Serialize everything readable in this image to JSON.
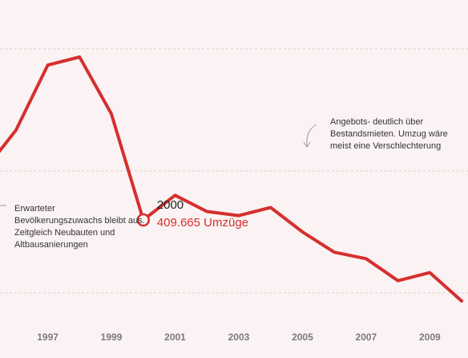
{
  "chart_data": {
    "type": "line",
    "x": [
      1995,
      1996,
      1997,
      1998,
      1999,
      2000,
      2001,
      2002,
      2003,
      2004,
      2005,
      2006,
      2007,
      2008,
      2009,
      2010
    ],
    "series": [
      {
        "values": [
          470000,
          520000,
          600000,
          610000,
          540000,
          409665,
          440000,
          420000,
          415000,
          425000,
          395000,
          370000,
          362000,
          335000,
          345000,
          310000
        ]
      }
    ],
    "x_ticks": [
      "1997",
      "1999",
      "2001",
      "2003",
      "2005",
      "2007",
      "2009"
    ],
    "xlim": [
      1995.5,
      2010.2
    ],
    "ylim": [
      240000,
      680000
    ],
    "grid_y": [
      620000,
      470000,
      320000
    ],
    "highlight": {
      "year": "2000",
      "value_label": "409.665 Umzüge"
    },
    "annotations": [
      {
        "lines": [
          "Angebots- deutlich über",
          "Bestandsmieten. Umzug wäre",
          "meist eine Verschlechterung"
        ]
      },
      {
        "lines": [
          "Erwarteter",
          "Bevölkerungszuwachs bleibt aus.",
          "Zeitgleich Neubauten und",
          "Altbausanierungen"
        ]
      }
    ],
    "colors": {
      "line": "#d62f2f",
      "background": "#fbf3f3"
    }
  }
}
